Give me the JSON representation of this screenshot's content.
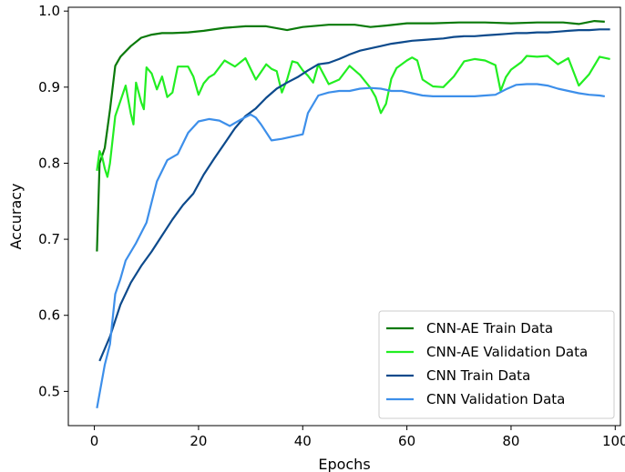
{
  "chart_data": {
    "type": "line",
    "xlabel": "Epochs",
    "ylabel": "Accuracy",
    "xlim": [
      -5,
      101
    ],
    "ylim": [
      0.455,
      1.005
    ],
    "xticks": [
      0,
      20,
      40,
      60,
      80,
      100
    ],
    "yticks": [
      0.5,
      0.6,
      0.7,
      0.8,
      0.9,
      1.0
    ],
    "xtick_labels": [
      "0",
      "20",
      "40",
      "60",
      "80",
      "100"
    ],
    "ytick_labels": [
      "0.5",
      "0.6",
      "0.7",
      "0.8",
      "0.9",
      "1.0"
    ],
    "grid": false,
    "legend_position": "lower-right",
    "series": [
      {
        "name": "CNN-AE Train Data",
        "color": "#0a7a0a",
        "x": [
          0.5,
          1,
          2,
          3,
          4,
          5,
          7,
          9,
          11,
          13,
          15,
          18,
          21,
          25,
          29,
          33,
          37,
          40,
          45,
          50,
          53,
          56,
          60,
          65,
          70,
          75,
          80,
          85,
          90,
          93,
          96,
          98
        ],
        "y": [
          0.684,
          0.8,
          0.82,
          0.87,
          0.928,
          0.94,
          0.954,
          0.965,
          0.969,
          0.971,
          0.971,
          0.972,
          0.974,
          0.978,
          0.98,
          0.98,
          0.975,
          0.979,
          0.982,
          0.982,
          0.979,
          0.981,
          0.984,
          0.984,
          0.985,
          0.985,
          0.984,
          0.985,
          0.985,
          0.983,
          0.987,
          0.986
        ]
      },
      {
        "name": "CNN-AE Validation Data",
        "color": "#22ee22",
        "x": [
          0.5,
          1,
          1.5,
          2,
          2.5,
          3,
          4,
          5,
          6,
          7,
          7.5,
          8,
          9,
          9.5,
          10,
          11,
          12,
          13,
          14,
          15,
          16,
          17,
          18,
          19,
          20,
          21,
          22,
          23,
          25,
          27,
          29,
          31,
          33,
          34,
          35,
          36,
          37,
          38,
          39,
          40,
          41,
          42,
          43,
          45,
          47,
          49,
          51,
          53,
          54,
          55,
          56,
          57,
          58,
          60,
          61,
          62,
          63,
          65,
          67,
          69,
          71,
          73,
          75,
          77,
          78,
          79,
          80,
          82,
          83,
          85,
          87,
          89,
          91,
          93,
          95,
          97,
          99
        ],
        "y": [
          0.79,
          0.816,
          0.808,
          0.793,
          0.782,
          0.8,
          0.862,
          0.882,
          0.902,
          0.865,
          0.851,
          0.906,
          0.88,
          0.871,
          0.926,
          0.918,
          0.897,
          0.914,
          0.887,
          0.893,
          0.927,
          0.927,
          0.927,
          0.914,
          0.89,
          0.905,
          0.913,
          0.917,
          0.935,
          0.927,
          0.938,
          0.91,
          0.93,
          0.924,
          0.921,
          0.893,
          0.91,
          0.934,
          0.932,
          0.922,
          0.915,
          0.906,
          0.93,
          0.904,
          0.91,
          0.928,
          0.916,
          0.899,
          0.887,
          0.866,
          0.878,
          0.911,
          0.925,
          0.935,
          0.939,
          0.935,
          0.91,
          0.901,
          0.9,
          0.914,
          0.934,
          0.937,
          0.935,
          0.929,
          0.895,
          0.913,
          0.923,
          0.933,
          0.941,
          0.94,
          0.941,
          0.93,
          0.938,
          0.902,
          0.917,
          0.94,
          0.937
        ]
      },
      {
        "name": "CNN Train Data",
        "color": "#0d4a8c",
        "x": [
          1,
          3,
          5,
          7,
          9,
          11,
          13,
          15,
          17,
          19,
          21,
          23,
          25,
          27,
          29,
          31,
          33,
          35,
          37,
          39,
          41,
          43,
          45,
          47,
          49,
          51,
          53,
          55,
          57,
          59,
          61,
          63,
          65,
          67,
          69,
          71,
          73,
          75,
          77,
          79,
          81,
          83,
          85,
          87,
          89,
          91,
          93,
          95,
          97,
          99
        ],
        "y": [
          0.54,
          0.572,
          0.614,
          0.643,
          0.665,
          0.684,
          0.705,
          0.726,
          0.745,
          0.76,
          0.785,
          0.806,
          0.826,
          0.846,
          0.862,
          0.872,
          0.886,
          0.898,
          0.906,
          0.913,
          0.922,
          0.93,
          0.932,
          0.937,
          0.943,
          0.948,
          0.951,
          0.954,
          0.957,
          0.959,
          0.961,
          0.962,
          0.963,
          0.964,
          0.966,
          0.967,
          0.967,
          0.968,
          0.969,
          0.97,
          0.971,
          0.971,
          0.972,
          0.972,
          0.973,
          0.974,
          0.975,
          0.975,
          0.976,
          0.976
        ]
      },
      {
        "name": "CNN Validation Data",
        "color": "#3d8fea",
        "x": [
          0.5,
          2,
          3,
          4,
          5,
          6,
          8,
          10,
          12,
          14,
          16,
          18,
          20,
          22,
          24,
          26,
          28,
          30,
          31,
          32,
          34,
          36,
          38,
          40,
          41,
          43,
          45,
          47,
          49,
          51,
          53,
          55,
          57,
          59,
          61,
          63,
          65,
          67,
          69,
          71,
          73,
          75,
          77,
          79,
          81,
          83,
          85,
          87,
          89,
          91,
          93,
          95,
          97,
          98
        ],
        "y": [
          0.478,
          0.535,
          0.562,
          0.628,
          0.648,
          0.672,
          0.695,
          0.722,
          0.776,
          0.804,
          0.812,
          0.84,
          0.855,
          0.858,
          0.856,
          0.849,
          0.857,
          0.864,
          0.86,
          0.851,
          0.83,
          0.832,
          0.835,
          0.838,
          0.866,
          0.889,
          0.893,
          0.895,
          0.895,
          0.898,
          0.899,
          0.898,
          0.895,
          0.895,
          0.892,
          0.889,
          0.888,
          0.888,
          0.888,
          0.888,
          0.888,
          0.889,
          0.89,
          0.897,
          0.903,
          0.904,
          0.904,
          0.902,
          0.898,
          0.895,
          0.892,
          0.89,
          0.889,
          0.888
        ]
      }
    ]
  }
}
